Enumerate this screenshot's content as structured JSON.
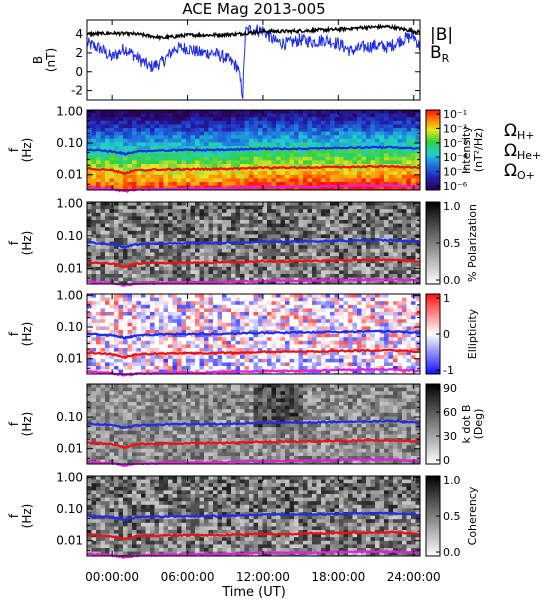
{
  "title": "ACE Mag 2013-005",
  "x_axis": {
    "label": "Time (UT)",
    "ticks": [
      "00:00:00",
      "06:00:00",
      "12:00:00",
      "18:00:00",
      "24:00:00"
    ],
    "range_hours": [
      -2,
      24.5
    ]
  },
  "colors": {
    "B_total": "#000000",
    "B_R": "#1f2ee6",
    "H_plus": "#1f2ee6",
    "He_plus": "#ee1111",
    "O_plus": "#e020e0"
  },
  "chart_data": [
    {
      "type": "line",
      "panel": "magnetic-field",
      "ylabel": "B (nT)",
      "ylim": [
        -3,
        5.5
      ],
      "yticks": [
        "-2",
        "0",
        "2",
        "4"
      ],
      "legend": [
        "|B|",
        "BR"
      ],
      "series": [
        {
          "name": "|B|",
          "x": [
            -2,
            0,
            2,
            4,
            6,
            8,
            10,
            12,
            14,
            16,
            18,
            20,
            22,
            24.5
          ],
          "y": [
            4.0,
            4.1,
            4.0,
            3.6,
            3.9,
            3.9,
            4.0,
            4.3,
            4.3,
            4.4,
            4.5,
            4.7,
            4.8,
            4.2
          ]
        },
        {
          "name": "BR",
          "x": [
            -2,
            -1,
            0,
            1,
            2,
            3,
            4,
            5,
            6,
            7,
            8,
            9,
            10,
            10.4,
            10.6,
            11,
            12,
            13,
            14,
            15,
            16,
            17,
            18,
            19,
            20,
            21,
            22,
            23,
            24,
            24.5
          ],
          "y": [
            3.0,
            2.5,
            1.5,
            2.5,
            1.5,
            0.5,
            1.0,
            2.5,
            2.5,
            2.0,
            2.0,
            1.5,
            0.5,
            -2.5,
            4.2,
            4.5,
            4.4,
            3.2,
            3.0,
            3.4,
            3.2,
            3.4,
            3.0,
            2.2,
            2.6,
            2.8,
            2.6,
            3.4,
            3.8,
            2.6
          ]
        }
      ]
    },
    {
      "type": "heatmap",
      "panel": "intensity",
      "ylabel": "f (Hz)",
      "yticks": [
        "1.00",
        "0.10",
        "0.01"
      ],
      "colorbar": {
        "label": "Intensity (nT²/Hz)",
        "ticks": [
          "10⁻¹",
          "10⁻²",
          "10⁻³",
          "10⁻⁴",
          "10⁻⁵",
          "10⁻⁶"
        ]
      }
    },
    {
      "type": "heatmap",
      "panel": "polarization",
      "ylabel": "f (Hz)",
      "yticks": [
        "1.00",
        "0.10",
        "0.01"
      ],
      "colorbar": {
        "label": "% Polarization",
        "ticks": [
          "1.0",
          "0.5",
          "0.0"
        ]
      }
    },
    {
      "type": "heatmap",
      "panel": "ellipticity",
      "ylabel": "f (Hz)",
      "yticks": [
        "1.00",
        "0.10",
        "0.01"
      ],
      "colorbar": {
        "label": "Ellipticity",
        "ticks": [
          "1",
          "0",
          "-1"
        ]
      }
    },
    {
      "type": "heatmap",
      "panel": "k-dot-b",
      "ylabel": "f (Hz)",
      "yticks": [
        "0.10",
        "0.01"
      ],
      "colorbar": {
        "label": "k dot B (Deg)",
        "ticks": [
          "90",
          "60",
          "30",
          "0"
        ]
      }
    },
    {
      "type": "heatmap",
      "panel": "coherency",
      "ylabel": "f (Hz)",
      "yticks": [
        "1.00",
        "0.10",
        "0.01"
      ],
      "colorbar": {
        "label": "Coherency",
        "ticks": [
          "1.0",
          "0.5",
          "0.0"
        ]
      }
    }
  ],
  "gyrofrequency_lines": {
    "legend": [
      "ΩH+",
      "ΩHe+",
      "ΩO+"
    ],
    "x": [
      -2,
      0,
      1,
      2,
      4,
      6,
      8,
      10,
      12,
      14,
      16,
      18,
      20,
      22,
      24.5
    ],
    "H_plus_hz": [
      0.062,
      0.055,
      0.045,
      0.055,
      0.058,
      0.06,
      0.06,
      0.062,
      0.066,
      0.066,
      0.068,
      0.07,
      0.072,
      0.074,
      0.066
    ],
    "He_plus_hz": [
      0.0155,
      0.014,
      0.011,
      0.014,
      0.0145,
      0.015,
      0.015,
      0.0155,
      0.0165,
      0.0165,
      0.017,
      0.0175,
      0.018,
      0.0185,
      0.0165
    ],
    "O_plus_hz": [
      0.0039,
      0.0035,
      0.003,
      0.0034,
      0.0036,
      0.0037,
      0.0037,
      0.0039,
      0.0041,
      0.0041,
      0.0042,
      0.0044,
      0.0045,
      0.0046,
      0.0041
    ]
  }
}
